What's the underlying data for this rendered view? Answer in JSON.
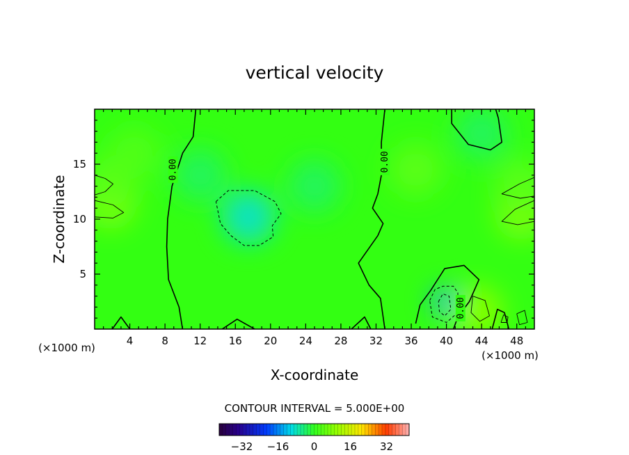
{
  "chart_data": {
    "type": "heatmap",
    "title": "vertical velocity",
    "xlabel": "X-coordinate",
    "ylabel": "Z-coordinate",
    "x_unit_left": "(×1000 m)",
    "x_unit_right": "(×1000 m)",
    "xlim": [
      0,
      50
    ],
    "ylim": [
      0,
      20
    ],
    "x_ticks": [
      4,
      8,
      12,
      16,
      20,
      24,
      28,
      32,
      36,
      40,
      44,
      48
    ],
    "y_ticks": [
      5,
      10,
      15
    ],
    "contour_label": "0.00",
    "contour_interval_text": "CONTOUR INTERVAL = 5.000E+00",
    "colorbar": {
      "range": [
        -42,
        42
      ],
      "ticks": [
        -32,
        -16,
        0,
        16,
        32
      ]
    },
    "zero_contours": [
      [
        [
          11.5,
          20
        ],
        [
          11.2,
          17.5
        ],
        [
          10,
          16
        ],
        [
          8.8,
          13
        ],
        [
          8.3,
          10
        ],
        [
          8.2,
          7.5
        ],
        [
          8.4,
          4.5
        ],
        [
          9.6,
          2
        ],
        [
          10,
          0
        ]
      ],
      [
        [
          33,
          20
        ],
        [
          32.6,
          17
        ],
        [
          32.6,
          14
        ],
        [
          32.2,
          12.3
        ],
        [
          31.6,
          11
        ],
        [
          32.8,
          9.6
        ],
        [
          32.2,
          8.5
        ],
        [
          30,
          6
        ],
        [
          31.2,
          4
        ],
        [
          32.5,
          2.8
        ],
        [
          33,
          0
        ]
      ],
      [
        [
          40.6,
          20
        ],
        [
          40.6,
          18.7
        ],
        [
          42.5,
          16.8
        ],
        [
          45,
          16.3
        ],
        [
          46.3,
          17
        ],
        [
          45.9,
          19.2
        ],
        [
          45.6,
          20
        ]
      ],
      [
        [
          36.5,
          0.5
        ],
        [
          37,
          2.2
        ],
        [
          38.2,
          3.5
        ],
        [
          39.8,
          5.5
        ],
        [
          42,
          5.8
        ],
        [
          43.7,
          4.5
        ],
        [
          42.6,
          2.5
        ],
        [
          41.3,
          1.1
        ],
        [
          40.8,
          0
        ]
      ],
      [
        [
          2.0,
          0
        ],
        [
          3.0,
          1.1
        ],
        [
          4.0,
          0
        ]
      ],
      [
        [
          14.5,
          0
        ],
        [
          16.2,
          0.9
        ],
        [
          18.2,
          0
        ]
      ],
      [
        [
          29.2,
          0
        ],
        [
          30.7,
          1.1
        ],
        [
          31.4,
          0
        ]
      ],
      [
        [
          45.2,
          0
        ],
        [
          45.8,
          1.8
        ],
        [
          46.6,
          1.5
        ],
        [
          47.1,
          0
        ]
      ]
    ],
    "negative_contours": [
      [
        [
          13.8,
          11.6
        ],
        [
          15.2,
          12.6
        ],
        [
          18.2,
          12.6
        ],
        [
          20.5,
          11.6
        ],
        [
          21.2,
          10.5
        ],
        [
          20.2,
          9.4
        ],
        [
          20.3,
          8.4
        ],
        [
          18.7,
          7.6
        ],
        [
          17,
          7.6
        ],
        [
          15.5,
          8.5
        ],
        [
          14.3,
          9.6
        ],
        [
          13.8,
          11.6
        ]
      ],
      [
        [
          38.1,
          2.6
        ],
        [
          38.7,
          3.6
        ],
        [
          39.6,
          3.9
        ],
        [
          40.8,
          3.9
        ],
        [
          41.3,
          3.3
        ],
        [
          41.3,
          1.5
        ],
        [
          40,
          0.6
        ],
        [
          38.4,
          1.1
        ],
        [
          38.1,
          2.6
        ]
      ],
      [
        [
          39.1,
          2.5
        ],
        [
          39.6,
          3.2
        ],
        [
          40.3,
          3.0
        ],
        [
          40.5,
          1.8
        ],
        [
          39.8,
          1.2
        ],
        [
          39.2,
          1.6
        ],
        [
          39.1,
          2.5
        ]
      ]
    ],
    "positive_contours": [
      [
        [
          0,
          14
        ],
        [
          1.2,
          13.7
        ],
        [
          2.1,
          13.2
        ],
        [
          1.2,
          12.5
        ],
        [
          0,
          12.2
        ]
      ],
      [
        [
          0,
          11.7
        ],
        [
          2.1,
          11.3
        ],
        [
          3.3,
          10.6
        ],
        [
          2.1,
          10.1
        ],
        [
          0,
          10.2
        ]
      ],
      [
        [
          50,
          13.8
        ],
        [
          48.3,
          13.2
        ],
        [
          46.3,
          12.3
        ],
        [
          48.4,
          11.9
        ],
        [
          50,
          12.1
        ]
      ],
      [
        [
          50,
          11.7
        ],
        [
          47.8,
          10.9
        ],
        [
          46.3,
          9.8
        ],
        [
          48.1,
          9.5
        ],
        [
          50,
          9.8
        ]
      ],
      [
        [
          43,
          3
        ],
        [
          44.4,
          2.6
        ],
        [
          44.9,
          1.2
        ],
        [
          43.8,
          0.7
        ],
        [
          42.8,
          1.5
        ],
        [
          43,
          3
        ]
      ],
      [
        [
          46.2,
          0.6
        ],
        [
          46.5,
          1.3
        ],
        [
          47,
          1.1
        ],
        [
          46.9,
          0.6
        ],
        [
          46.2,
          0.6
        ]
      ],
      [
        [
          48,
          1.4
        ],
        [
          48.9,
          1.7
        ],
        [
          49.2,
          0.6
        ],
        [
          48.3,
          0.4
        ],
        [
          48,
          1.4
        ]
      ]
    ],
    "field_features": [
      {
        "x": 17.5,
        "z": 10.2,
        "value": -8
      },
      {
        "x": 12,
        "z": 14,
        "value": -3
      },
      {
        "x": 25,
        "z": 13,
        "value": -3
      },
      {
        "x": 39.8,
        "z": 2.5,
        "value": -14
      },
      {
        "x": 43.5,
        "z": 1.6,
        "value": 8
      },
      {
        "x": 1.8,
        "z": 11.5,
        "value": 7
      },
      {
        "x": 2,
        "z": 13.5,
        "value": 4
      },
      {
        "x": 48.5,
        "z": 10.5,
        "value": 7
      },
      {
        "x": 48.5,
        "z": 13,
        "value": 4
      },
      {
        "x": 36.5,
        "z": 14.5,
        "value": 4
      },
      {
        "x": 4.5,
        "z": 16,
        "value": 3
      },
      {
        "x": 44,
        "z": 17.8,
        "value": -3
      }
    ]
  }
}
